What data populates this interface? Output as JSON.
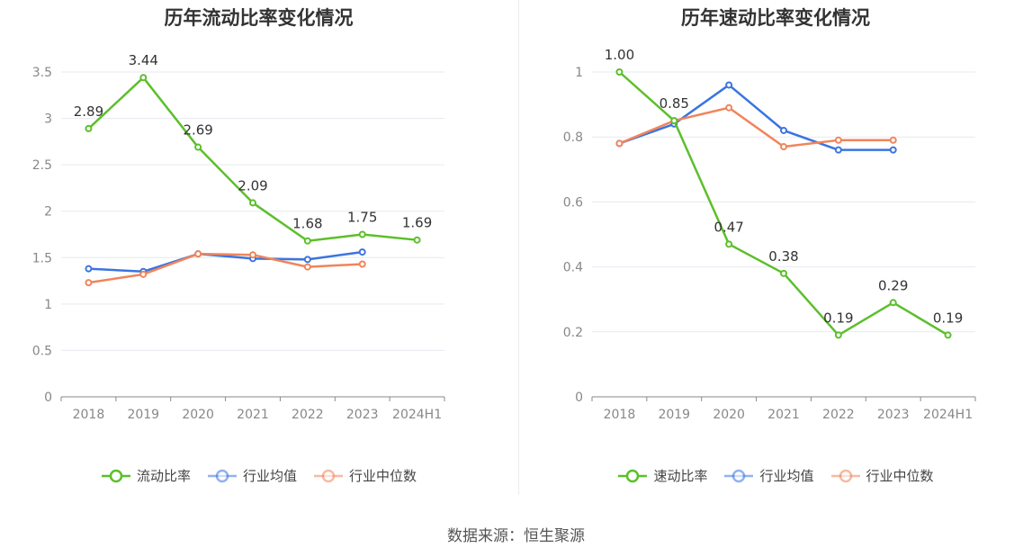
{
  "source_text": "数据来源：恒生聚源",
  "chart_data": [
    {
      "type": "line",
      "title": "历年流动比率变化情况",
      "categories": [
        "2018",
        "2019",
        "2020",
        "2021",
        "2022",
        "2023",
        "2024H1"
      ],
      "ylim": [
        0,
        3.5
      ],
      "yticks": [
        "0",
        "0.5",
        "1",
        "1.5",
        "2",
        "2.5",
        "3",
        "3.5"
      ],
      "ytick_values": [
        0,
        0.5,
        1,
        1.5,
        2,
        2.5,
        3,
        3.5
      ],
      "grid": true,
      "legend_position": "bottom",
      "series": [
        {
          "name": "流动比率",
          "color": "#5cbf2a",
          "values": [
            2.89,
            3.44,
            2.69,
            2.09,
            1.68,
            1.75,
            1.69
          ],
          "labels": [
            "2.89",
            "3.44",
            "2.69",
            "2.09",
            "1.68",
            "1.75",
            "1.69"
          ]
        },
        {
          "name": "行业均值",
          "color": "#3b74e0",
          "values": [
            1.38,
            1.35,
            1.54,
            1.49,
            1.48,
            1.56,
            null
          ]
        },
        {
          "name": "行业中位数",
          "color": "#f0845b",
          "values": [
            1.23,
            1.32,
            1.54,
            1.53,
            1.4,
            1.43,
            null
          ]
        }
      ]
    },
    {
      "type": "line",
      "title": "历年速动比率变化情况",
      "categories": [
        "2018",
        "2019",
        "2020",
        "2021",
        "2022",
        "2023",
        "2024H1"
      ],
      "ylim": [
        0,
        1
      ],
      "yticks": [
        "0",
        "0.2",
        "0.4",
        "0.6",
        "0.8",
        "1"
      ],
      "ytick_values": [
        0,
        0.2,
        0.4,
        0.6,
        0.8,
        1
      ],
      "grid": true,
      "legend_position": "bottom",
      "series": [
        {
          "name": "速动比率",
          "color": "#5cbf2a",
          "values": [
            1.0,
            0.85,
            0.47,
            0.38,
            0.19,
            0.29,
            0.19
          ],
          "labels": [
            "1.00",
            "0.85",
            "0.47",
            "0.38",
            "0.19",
            "0.29",
            "0.19"
          ]
        },
        {
          "name": "行业均值",
          "color": "#3b74e0",
          "values": [
            0.78,
            0.84,
            0.96,
            0.82,
            0.76,
            0.76,
            null
          ]
        },
        {
          "name": "行业中位数",
          "color": "#f0845b",
          "values": [
            0.78,
            0.85,
            0.89,
            0.77,
            0.79,
            0.79,
            null
          ]
        }
      ]
    }
  ]
}
